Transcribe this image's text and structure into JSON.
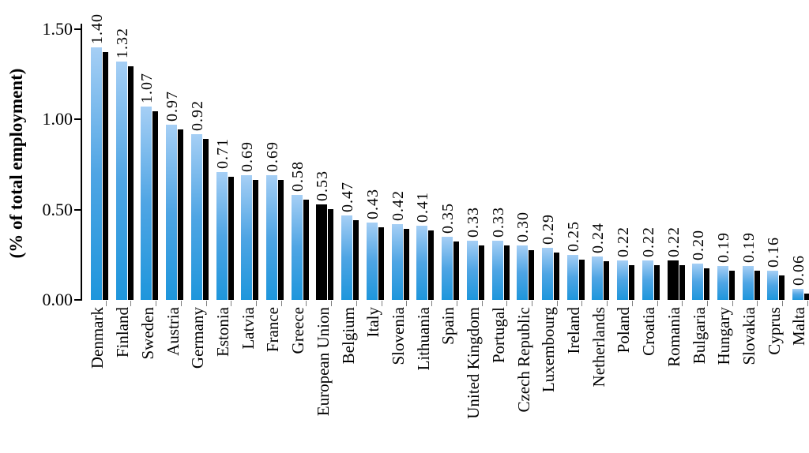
{
  "chart_data": {
    "type": "bar",
    "title": "",
    "xlabel": "",
    "ylabel": "(% of total employment)",
    "ylim": [
      0,
      1.5
    ],
    "yticks": [
      {
        "label": "0.00",
        "value": 0.0
      },
      {
        "label": "0.50",
        "value": 0.5
      },
      {
        "label": "1.00",
        "value": 1.0
      },
      {
        "label": "1.50",
        "value": 1.5
      }
    ],
    "grid": false,
    "legend_position": "none",
    "bar_style": {
      "fill_gradient_top": "#a6cff5",
      "fill_gradient_bottom": "#1e96dc",
      "shadow_color": "#000000",
      "highlight_color": "#000000"
    },
    "categories": [
      "Denmark",
      "Finland",
      "Sweden",
      "Austria",
      "Germany",
      "Estonia",
      "Latvia",
      "France",
      "Greece",
      "European Union",
      "Belgium",
      "Italy",
      "Slovenia",
      "Lithuania",
      "Spain",
      "United Kingdom",
      "Portugal",
      "Czech Republic",
      "Luxembourg",
      "Ireland",
      "Netherlands",
      "Poland",
      "Croatia",
      "Romania",
      "Bulgaria",
      "Hungary",
      "Slovakia",
      "Cyprus",
      "Malta"
    ],
    "values": [
      1.4,
      1.32,
      1.07,
      0.97,
      0.92,
      0.71,
      0.69,
      0.69,
      0.58,
      0.53,
      0.47,
      0.43,
      0.42,
      0.41,
      0.35,
      0.33,
      0.33,
      0.3,
      0.29,
      0.25,
      0.24,
      0.22,
      0.22,
      0.22,
      0.2,
      0.19,
      0.19,
      0.16,
      0.06
    ],
    "value_labels": [
      "1.40",
      "1.32",
      "1.07",
      "0.97",
      "0.92",
      "0.71",
      "0.69",
      "0.69",
      "0.58",
      "0.53",
      "0.47",
      "0.43",
      "0.42",
      "0.41",
      "0.35",
      "0.33",
      "0.33",
      "0.30",
      "0.29",
      "0.25",
      "0.24",
      "0.22",
      "0.22",
      "0.22",
      "0.20",
      "0.19",
      "0.19",
      "0.16",
      "0.06"
    ],
    "highlighted_categories": [
      "European Union",
      "Romania"
    ]
  }
}
